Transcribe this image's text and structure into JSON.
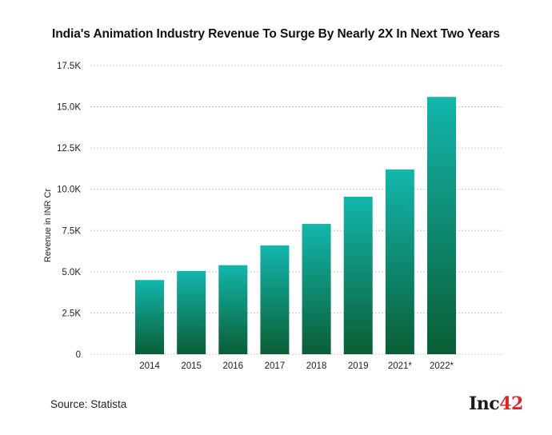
{
  "chart_data": {
    "type": "bar",
    "title": "India's Animation Industry Revenue To Surge By Nearly 2X In Next Two Years",
    "xlabel": "",
    "ylabel": "Revenue in INR Cr",
    "categories": [
      "2014",
      "2015",
      "2016",
      "2017",
      "2018",
      "2019",
      "2021*",
      "2022*"
    ],
    "values": [
      4500,
      5050,
      5400,
      6600,
      7900,
      9550,
      11200,
      15600
    ],
    "ylim": [
      0,
      17500
    ],
    "yticks": [
      {
        "value": 0,
        "label": "0"
      },
      {
        "value": 2500,
        "label": "2.5K"
      },
      {
        "value": 5000,
        "label": "5.0K"
      },
      {
        "value": 7500,
        "label": "7.5K"
      },
      {
        "value": 10000,
        "label": "10.0K"
      },
      {
        "value": 12500,
        "label": "12.5K"
      },
      {
        "value": 15000,
        "label": "15.0K"
      },
      {
        "value": 17500,
        "label": "17.5K"
      }
    ],
    "grid": true,
    "grid_style": "dashed",
    "bar_gradient": {
      "top": "#13b6ad",
      "bottom": "#0a5e35"
    }
  },
  "footer": {
    "source": "Source: Statista",
    "logo_main": "Inc",
    "logo_accent": "42"
  },
  "colors": {
    "logo_accent": "#d8282c",
    "grid": "#c8c8c8"
  }
}
